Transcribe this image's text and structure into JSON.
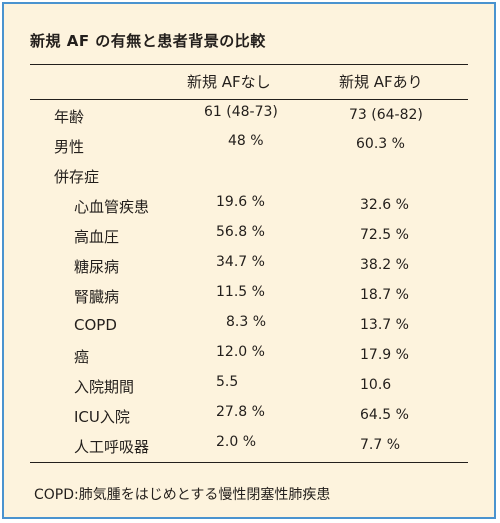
{
  "title": "新規 AF の有無と患者背景の比較",
  "headers": [
    "新規 AFなし",
    "新規 AFあり"
  ],
  "rows": [
    {
      "label": "年齢",
      "no_af": "61 (48-73)",
      "af": "73 (64-82)"
    },
    {
      "label": "男性",
      "no_af": "48 %",
      "af": "60.3 %"
    },
    {
      "label": "併存症",
      "no_af": "",
      "af": ""
    },
    {
      "label": "心血管疾患",
      "no_af": "19.6 %",
      "af": "32.6 %"
    },
    {
      "label": "高血圧",
      "no_af": "56.8 %",
      "af": "72.5 %"
    },
    {
      "label": "糖尿病",
      "no_af": "34.7 %",
      "af": "38.2 %"
    },
    {
      "label": "腎臓病",
      "no_af": "11.5 %",
      "af": "18.7 %"
    },
    {
      "label": "COPD",
      "no_af": "8.3 %",
      "af": "13.7 %"
    },
    {
      "label": "癌",
      "no_af": "12.0 %",
      "af": "17.9 %"
    },
    {
      "label": "入院期間",
      "no_af": "5.5",
      "af": "10.6"
    },
    {
      "label": "ICU入院",
      "no_af": "27.8 %",
      "af": "64.5 %"
    },
    {
      "label": "人工呼吸器",
      "no_af": "2.0 %",
      "af": "7.7 %"
    }
  ],
  "footnote": "COPD:肺気腫をはじめとする慢性閉塞性肺疾患"
}
